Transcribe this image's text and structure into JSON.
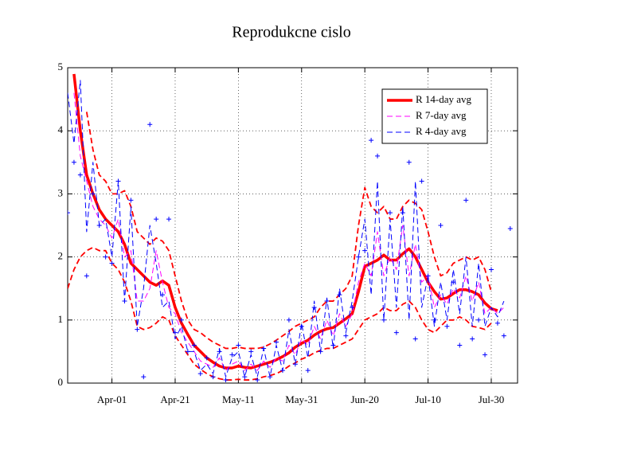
{
  "chart_data": {
    "type": "line",
    "title": "Reprodukcne cislo",
    "categories": [
      null,
      null,
      null,
      null,
      null,
      null,
      null,
      "Apr-01",
      null,
      null,
      null,
      null,
      null,
      null,
      null,
      null,
      null,
      "Apr-21",
      null,
      null,
      null,
      null,
      null,
      null,
      null,
      null,
      null,
      "May-11",
      null,
      null,
      null,
      null,
      null,
      null,
      null,
      null,
      null,
      "May-31",
      null,
      null,
      null,
      null,
      null,
      null,
      null,
      null,
      null,
      "Jun-20",
      null,
      null,
      null,
      null,
      null,
      null,
      null,
      null,
      null,
      "Jul-10",
      null,
      null,
      null,
      null,
      null,
      null,
      null,
      null,
      null,
      "Jul-30",
      null,
      null,
      null
    ],
    "ylim": [
      0,
      5
    ],
    "yticks": [
      0,
      1,
      2,
      3,
      4,
      5
    ],
    "grid": true,
    "legend": "upper-right",
    "series": [
      {
        "name": "R 14-day avg",
        "color": "#ff0000",
        "width": 3.5,
        "dash": false,
        "values": [
          null,
          4.9,
          4.0,
          3.3,
          3.0,
          2.75,
          2.6,
          2.5,
          2.4,
          2.2,
          1.9,
          1.8,
          1.7,
          1.6,
          1.55,
          1.62,
          1.55,
          1.2,
          0.95,
          0.77,
          0.6,
          0.5,
          0.4,
          0.33,
          0.27,
          0.24,
          0.24,
          0.27,
          0.25,
          0.24,
          0.27,
          0.3,
          0.33,
          0.37,
          0.42,
          0.48,
          0.57,
          0.63,
          0.68,
          0.76,
          0.82,
          0.86,
          0.88,
          0.95,
          1.02,
          1.1,
          1.45,
          1.85,
          1.9,
          1.95,
          2.03,
          1.95,
          1.95,
          2.05,
          2.13,
          2.0,
          1.8,
          1.6,
          1.45,
          1.33,
          1.35,
          1.42,
          1.48,
          1.48,
          1.45,
          1.4,
          1.27,
          1.18,
          1.15,
          null,
          null
        ]
      },
      {
        "color": "#ff0000",
        "width": 1.8,
        "dash": true,
        "values": [
          null,
          null,
          null,
          4.3,
          3.7,
          3.3,
          3.2,
          3.0,
          3.0,
          3.05,
          2.8,
          2.4,
          2.3,
          2.2,
          2.3,
          2.25,
          2.1,
          1.7,
          1.3,
          1.0,
          0.85,
          0.8,
          0.72,
          0.65,
          0.6,
          0.55,
          0.55,
          0.57,
          0.55,
          0.55,
          0.55,
          0.57,
          0.62,
          0.68,
          0.75,
          0.82,
          0.9,
          0.95,
          1.0,
          1.05,
          1.2,
          1.3,
          1.3,
          1.4,
          1.5,
          1.7,
          2.5,
          3.1,
          2.8,
          2.7,
          2.8,
          2.6,
          2.6,
          2.8,
          2.9,
          2.85,
          2.75,
          2.4,
          2.0,
          1.7,
          1.75,
          1.9,
          1.95,
          2.0,
          1.95,
          2.0,
          1.8,
          1.45,
          null,
          null,
          null
        ]
      },
      {
        "color": "#ff0000",
        "width": 1.8,
        "dash": true,
        "values": [
          1.5,
          1.8,
          2.0,
          2.1,
          2.15,
          2.1,
          2.1,
          1.9,
          1.8,
          1.6,
          1.3,
          0.9,
          0.85,
          0.88,
          0.95,
          1.05,
          1.0,
          0.75,
          0.6,
          0.45,
          0.3,
          0.22,
          0.15,
          0.1,
          0.07,
          0.05,
          0.05,
          0.06,
          0.05,
          0.05,
          0.07,
          0.1,
          0.12,
          0.15,
          0.2,
          0.27,
          0.32,
          0.38,
          0.42,
          0.48,
          0.52,
          0.55,
          0.55,
          0.6,
          0.65,
          0.7,
          0.85,
          1.0,
          1.05,
          1.1,
          1.2,
          1.15,
          1.15,
          1.25,
          1.3,
          1.2,
          1.0,
          0.85,
          0.8,
          0.9,
          1.0,
          1.0,
          1.05,
          1.0,
          0.9,
          0.88,
          0.85,
          0.95,
          null,
          null,
          null
        ]
      },
      {
        "name": "R 7-day avg",
        "color": "#ff00ff",
        "width": 1,
        "dash": true,
        "values": [
          null,
          4.6,
          3.6,
          3.2,
          2.8,
          2.6,
          2.5,
          2.3,
          2.6,
          2.0,
          2.1,
          1.3,
          1.3,
          1.5,
          2.1,
          1.6,
          1.2,
          1.1,
          0.8,
          0.65,
          0.5,
          0.35,
          0.3,
          0.25,
          0.4,
          0.2,
          0.3,
          0.35,
          0.2,
          0.3,
          0.2,
          0.35,
          0.25,
          0.4,
          0.35,
          0.6,
          0.45,
          0.7,
          0.6,
          0.9,
          0.7,
          1.0,
          0.75,
          1.1,
          0.9,
          1.1,
          1.6,
          1.9,
          1.7,
          2.4,
          1.7,
          2.0,
          1.8,
          2.5,
          1.7,
          2.2,
          1.6,
          1.7,
          1.2,
          1.4,
          1.25,
          1.5,
          1.35,
          1.7,
          1.3,
          1.6,
          1.1,
          1.2,
          1.1,
          1.2,
          null
        ]
      },
      {
        "name": "R 4-day avg",
        "color": "#0000ff",
        "width": 1,
        "dash": true,
        "values": [
          4.6,
          3.8,
          4.8,
          2.4,
          3.5,
          2.5,
          2.6,
          2.0,
          3.2,
          1.3,
          2.8,
          0.9,
          1.5,
          2.5,
          1.9,
          1.2,
          1.3,
          0.7,
          0.9,
          0.5,
          0.5,
          0.2,
          0.3,
          0.15,
          0.55,
          0.1,
          0.4,
          0.5,
          0.1,
          0.45,
          0.1,
          0.55,
          0.1,
          0.6,
          0.2,
          0.85,
          0.3,
          0.95,
          0.4,
          1.3,
          0.5,
          1.35,
          0.55,
          1.5,
          0.8,
          1.3,
          2.0,
          2.6,
          1.4,
          3.2,
          1.0,
          2.6,
          1.2,
          2.8,
          1.0,
          3.2,
          1.2,
          1.7,
          0.9,
          1.6,
          1.0,
          1.8,
          1.1,
          2.0,
          0.9,
          1.9,
          0.9,
          1.2,
          1.05,
          1.3,
          null
        ]
      },
      {
        "color": "#0000ff",
        "marker": "+",
        "values": [
          2.7,
          3.5,
          3.3,
          1.7,
          3.0,
          2.5,
          2.0,
          1.9,
          3.2,
          1.3,
          2.9,
          0.85,
          0.1,
          4.1,
          2.6,
          1.4,
          2.6,
          0.8,
          1.0,
          0.5,
          0.6,
          0.15,
          0.4,
          0.1,
          0.5,
          0.05,
          0.45,
          0.6,
          0.1,
          0.5,
          0.05,
          0.55,
          0.1,
          0.65,
          0.2,
          1.0,
          0.3,
          0.9,
          0.2,
          1.2,
          0.5,
          1.3,
          0.6,
          1.4,
          0.75,
          1.2,
          2.0,
          2.1,
          3.85,
          3.6,
          1.0,
          2.7,
          0.8,
          2.7,
          3.5,
          0.7,
          3.2,
          1.7,
          1.0,
          2.5,
          0.9,
          1.6,
          0.6,
          2.9,
          0.7,
          1.0,
          0.45,
          1.8,
          0.95,
          0.75,
          2.45
        ]
      }
    ]
  }
}
